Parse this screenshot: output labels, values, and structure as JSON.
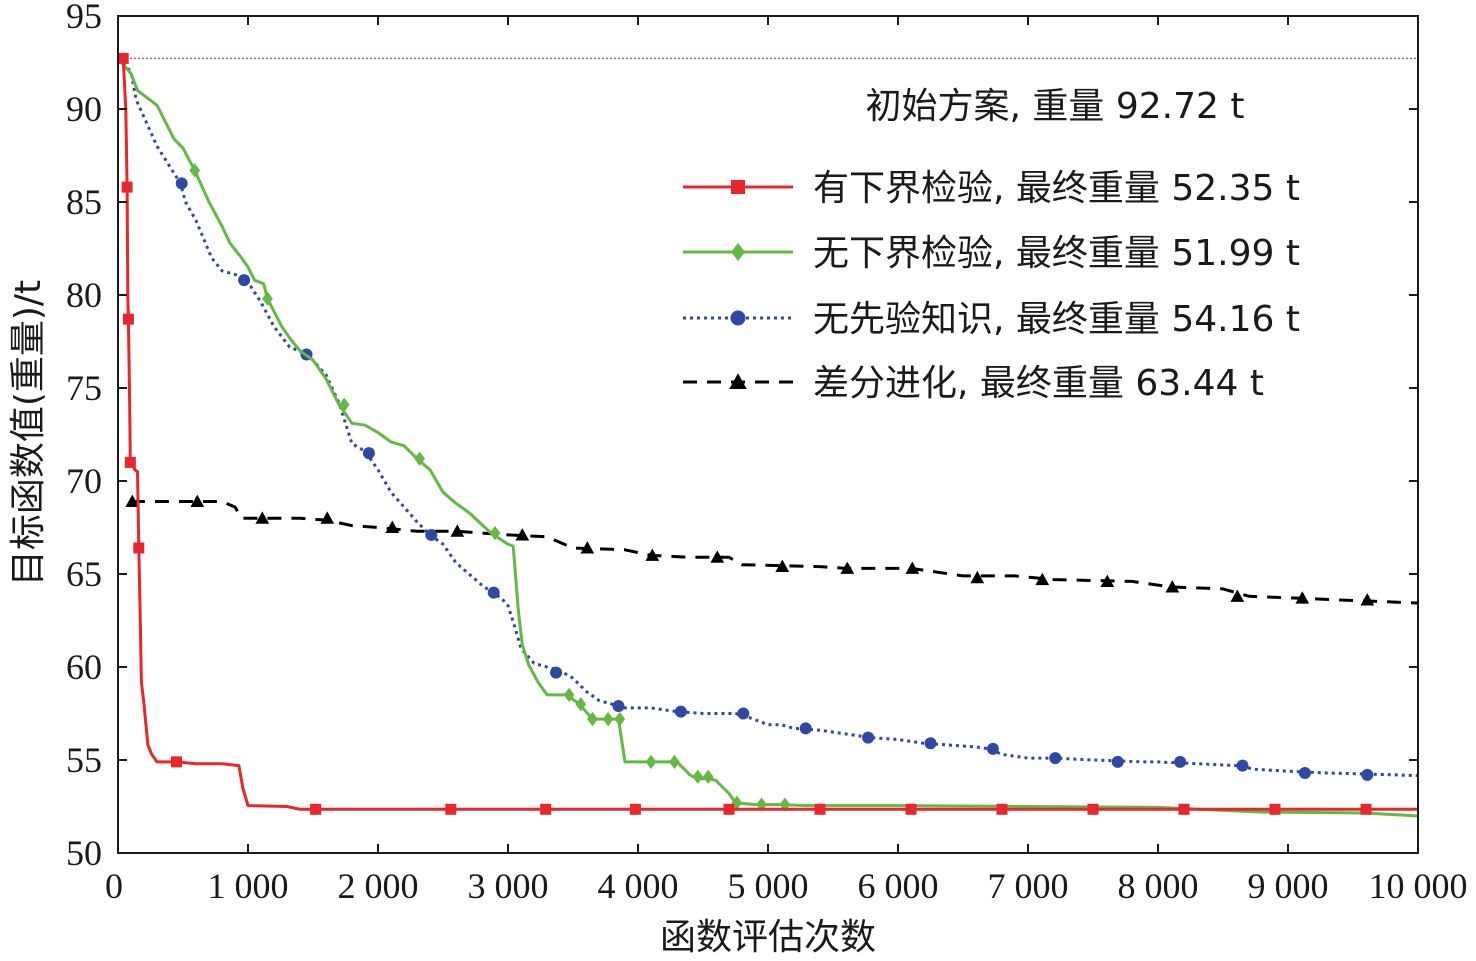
{
  "chart_data": {
    "type": "line",
    "xlabel": "函数评估次数",
    "ylabel": "目标函数值(重量)/t",
    "xlim": [
      0,
      10000
    ],
    "ylim": [
      50,
      95
    ],
    "x_ticks": [
      0,
      1000,
      2000,
      3000,
      4000,
      5000,
      6000,
      7000,
      8000,
      9000,
      10000
    ],
    "x_tick_labels": [
      "0",
      "1 000",
      "2 000",
      "3 000",
      "4 000",
      "5 000",
      "6 000",
      "7 000",
      "8 000",
      "9 000",
      "10 000"
    ],
    "y_ticks": [
      50,
      55,
      60,
      65,
      70,
      75,
      80,
      85,
      90,
      95
    ],
    "y_tick_labels": [
      "50",
      "55",
      "60",
      "65",
      "70",
      "75",
      "80",
      "85",
      "90",
      "95"
    ],
    "grid": false,
    "legend_position": "top-right",
    "reference_line": {
      "y": 92.72,
      "color": "#c0504d",
      "label": "初始方案, 重量 92.72 t"
    },
    "series": [
      {
        "name": "有下界检验, 最终重量 52.35 t",
        "color": "#e8262b",
        "marker": "square",
        "dash": "solid",
        "points": [
          [
            0,
            92.72
          ],
          [
            40,
            92.72
          ],
          [
            60,
            90
          ],
          [
            70,
            85.8
          ],
          [
            75,
            80
          ],
          [
            80,
            78.7
          ],
          [
            90,
            74
          ],
          [
            95,
            71
          ],
          [
            110,
            70.9
          ],
          [
            130,
            70.6
          ],
          [
            150,
            70.5
          ],
          [
            160,
            66.4
          ],
          [
            170,
            63
          ],
          [
            180,
            59.2
          ],
          [
            200,
            58
          ],
          [
            230,
            55.8
          ],
          [
            260,
            55.3
          ],
          [
            300,
            54.9
          ],
          [
            400,
            54.9
          ],
          [
            450,
            54.9
          ],
          [
            600,
            54.8
          ],
          [
            800,
            54.8
          ],
          [
            930,
            54.7
          ],
          [
            960,
            53.5
          ],
          [
            1000,
            52.55
          ],
          [
            1300,
            52.5
          ],
          [
            1400,
            52.35
          ],
          [
            1500,
            52.35
          ],
          [
            2600,
            52.35
          ],
          [
            10000,
            52.35
          ]
        ],
        "marker_points": [
          [
            40,
            92.72
          ],
          [
            70,
            85.8
          ],
          [
            80,
            78.7
          ],
          [
            95,
            71
          ],
          [
            160,
            66.4
          ],
          [
            450,
            54.9
          ],
          [
            1520,
            52.35
          ],
          [
            2560,
            52.35
          ],
          [
            3290,
            52.35
          ],
          [
            3980,
            52.35
          ],
          [
            4700,
            52.35
          ],
          [
            5400,
            52.35
          ],
          [
            6100,
            52.35
          ],
          [
            6800,
            52.35
          ],
          [
            7500,
            52.35
          ],
          [
            8200,
            52.35
          ],
          [
            8900,
            52.35
          ],
          [
            9600,
            52.35
          ]
        ]
      },
      {
        "name": "无下界检验, 最终重量 51.99 t",
        "color": "#63b943",
        "marker": "diamond",
        "dash": "solid",
        "points": [
          [
            0,
            92.72
          ],
          [
            100,
            91.9
          ],
          [
            150,
            91
          ],
          [
            300,
            90.2
          ],
          [
            430,
            88.4
          ],
          [
            500,
            87.9
          ],
          [
            590,
            86.7
          ],
          [
            700,
            85
          ],
          [
            800,
            83.7
          ],
          [
            860,
            82.8
          ],
          [
            950,
            82
          ],
          [
            1000,
            81.5
          ],
          [
            1050,
            80.8
          ],
          [
            1120,
            80.6
          ],
          [
            1150,
            79.8
          ],
          [
            1260,
            78.3
          ],
          [
            1330,
            77.6
          ],
          [
            1400,
            77
          ],
          [
            1500,
            76.5
          ],
          [
            1600,
            75.5
          ],
          [
            1700,
            74.1
          ],
          [
            1800,
            73.1
          ],
          [
            1900,
            73
          ],
          [
            2000,
            72.6
          ],
          [
            2100,
            72.1
          ],
          [
            2200,
            71.9
          ],
          [
            2300,
            71.2
          ],
          [
            2400,
            70.6
          ],
          [
            2500,
            69.4
          ],
          [
            2600,
            68.8
          ],
          [
            2700,
            68.3
          ],
          [
            2870,
            67.2
          ],
          [
            3000,
            66.6
          ],
          [
            3040,
            66.5
          ],
          [
            3080,
            63
          ],
          [
            3110,
            61.2
          ],
          [
            3160,
            60.1
          ],
          [
            3230,
            59.2
          ],
          [
            3300,
            58.5
          ],
          [
            3400,
            58.5
          ],
          [
            3450,
            58.5
          ],
          [
            3550,
            58
          ],
          [
            3650,
            57.2
          ],
          [
            3750,
            57.2
          ],
          [
            3800,
            57.2
          ],
          [
            3850,
            57.2
          ],
          [
            3880,
            55.8
          ],
          [
            3900,
            54.9
          ],
          [
            4000,
            54.9
          ],
          [
            4100,
            54.9
          ],
          [
            4300,
            54.9
          ],
          [
            4400,
            54.2
          ],
          [
            4450,
            54
          ],
          [
            4550,
            54
          ],
          [
            4600,
            53.9
          ],
          [
            4700,
            53.2
          ],
          [
            4750,
            52.7
          ],
          [
            4900,
            52.6
          ],
          [
            5000,
            52.6
          ],
          [
            5100,
            52.6
          ],
          [
            5300,
            52.55
          ],
          [
            6000,
            52.55
          ],
          [
            7000,
            52.5
          ],
          [
            8000,
            52.45
          ],
          [
            8800,
            52.2
          ],
          [
            9600,
            52.15
          ],
          [
            10000,
            51.99
          ]
        ],
        "marker_points": [
          [
            590,
            86.7
          ],
          [
            1150,
            79.8
          ],
          [
            1740,
            74.1
          ],
          [
            2320,
            71.2
          ],
          [
            2900,
            67.2
          ],
          [
            3470,
            58.5
          ],
          [
            3560,
            58
          ],
          [
            3650,
            57.2
          ],
          [
            3770,
            57.2
          ],
          [
            3860,
            57.2
          ],
          [
            4100,
            54.9
          ],
          [
            4280,
            54.9
          ],
          [
            4460,
            54.1
          ],
          [
            4540,
            54.1
          ],
          [
            4760,
            52.7
          ],
          [
            4950,
            52.6
          ],
          [
            5130,
            52.6
          ]
        ]
      },
      {
        "name": "无先验知识, 最终重量 54.16 t",
        "color": "#2e48a4",
        "marker": "circle",
        "dash": "dotted",
        "points": [
          [
            0,
            92.72
          ],
          [
            100,
            92
          ],
          [
            140,
            90.5
          ],
          [
            300,
            88
          ],
          [
            480,
            86
          ],
          [
            520,
            85
          ],
          [
            600,
            84
          ],
          [
            720,
            82
          ],
          [
            800,
            81.3
          ],
          [
            950,
            81
          ],
          [
            1000,
            80.7
          ],
          [
            1100,
            79.6
          ],
          [
            1200,
            78.3
          ],
          [
            1320,
            77.2
          ],
          [
            1460,
            76.8
          ],
          [
            1600,
            75.7
          ],
          [
            1700,
            74.2
          ],
          [
            1800,
            72
          ],
          [
            1900,
            71.6
          ],
          [
            2000,
            70.6
          ],
          [
            2100,
            69.4
          ],
          [
            2200,
            68.6
          ],
          [
            2300,
            67.8
          ],
          [
            2400,
            67.1
          ],
          [
            2500,
            66.6
          ],
          [
            2600,
            65.6
          ],
          [
            2700,
            65
          ],
          [
            2800,
            64.4
          ],
          [
            2880,
            64
          ],
          [
            2950,
            63.7
          ],
          [
            3000,
            63.3
          ],
          [
            3050,
            62.2
          ],
          [
            3100,
            61
          ],
          [
            3200,
            60.2
          ],
          [
            3300,
            60
          ],
          [
            3400,
            59.8
          ],
          [
            3500,
            59.4
          ],
          [
            3600,
            58.7
          ],
          [
            3700,
            58.2
          ],
          [
            3800,
            58
          ],
          [
            3900,
            57.8
          ],
          [
            4000,
            57.8
          ],
          [
            4100,
            57.8
          ],
          [
            4200,
            57.7
          ],
          [
            4300,
            57.6
          ],
          [
            4500,
            57.5
          ],
          [
            4600,
            57.5
          ],
          [
            4750,
            57.5
          ],
          [
            4850,
            57.3
          ],
          [
            5000,
            56.9
          ],
          [
            5100,
            56.9
          ],
          [
            5200,
            56.7
          ],
          [
            5400,
            56.6
          ],
          [
            5600,
            56.4
          ],
          [
            5800,
            56.2
          ],
          [
            6000,
            56.1
          ],
          [
            6100,
            56
          ],
          [
            6200,
            55.9
          ],
          [
            6400,
            55.8
          ],
          [
            6600,
            55.7
          ],
          [
            6700,
            55.6
          ],
          [
            6800,
            55.3
          ],
          [
            7000,
            55.1
          ],
          [
            7200,
            55.1
          ],
          [
            7500,
            55
          ],
          [
            7900,
            54.9
          ],
          [
            8000,
            54.9
          ],
          [
            8300,
            54.8
          ],
          [
            8600,
            54.7
          ],
          [
            8750,
            54.5
          ],
          [
            9000,
            54.4
          ],
          [
            9300,
            54.3
          ],
          [
            9600,
            54.25
          ],
          [
            10000,
            54.16
          ]
        ],
        "marker_points": [
          [
            490,
            86
          ],
          [
            970,
            80.8
          ],
          [
            1450,
            76.8
          ],
          [
            1930,
            71.5
          ],
          [
            2410,
            67.1
          ],
          [
            2890,
            64
          ],
          [
            3370,
            59.7
          ],
          [
            3850,
            57.9
          ],
          [
            4330,
            57.6
          ],
          [
            4810,
            57.5
          ],
          [
            5290,
            56.7
          ],
          [
            5770,
            56.2
          ],
          [
            6250,
            55.9
          ],
          [
            6730,
            55.6
          ],
          [
            7210,
            55.1
          ],
          [
            7690,
            54.9
          ],
          [
            8170,
            54.9
          ],
          [
            8650,
            54.7
          ],
          [
            9130,
            54.3
          ],
          [
            9610,
            54.2
          ]
        ]
      },
      {
        "name": "差分进化, 最终重量 63.44 t",
        "color": "#000000",
        "marker": "triangle",
        "dash": "dashed",
        "points": [
          [
            100,
            68.9
          ],
          [
            400,
            68.9
          ],
          [
            600,
            68.9
          ],
          [
            800,
            68.9
          ],
          [
            900,
            68.6
          ],
          [
            950,
            68
          ],
          [
            1000,
            68
          ],
          [
            1100,
            68
          ],
          [
            1400,
            68
          ],
          [
            1600,
            67.9
          ],
          [
            1800,
            67.6
          ],
          [
            2000,
            67.5
          ],
          [
            2300,
            67.3
          ],
          [
            2600,
            67.3
          ],
          [
            3000,
            67.1
          ],
          [
            3300,
            67
          ],
          [
            3500,
            66.4
          ],
          [
            3900,
            66.3
          ],
          [
            4100,
            66
          ],
          [
            4400,
            65.9
          ],
          [
            4700,
            65.9
          ],
          [
            4800,
            65.5
          ],
          [
            5400,
            65.4
          ],
          [
            5600,
            65.3
          ],
          [
            6100,
            65.3
          ],
          [
            6300,
            65.1
          ],
          [
            6500,
            64.9
          ],
          [
            6900,
            64.9
          ],
          [
            7200,
            64.7
          ],
          [
            7800,
            64.6
          ],
          [
            8100,
            64.3
          ],
          [
            8500,
            64.2
          ],
          [
            8700,
            63.8
          ],
          [
            9100,
            63.7
          ],
          [
            9400,
            63.6
          ],
          [
            10000,
            63.44
          ]
        ],
        "marker_points": [
          [
            110,
            68.9
          ],
          [
            610,
            68.9
          ],
          [
            1110,
            68
          ],
          [
            1610,
            68
          ],
          [
            2110,
            67.5
          ],
          [
            2610,
            67.3
          ],
          [
            3110,
            67.1
          ],
          [
            3610,
            66.4
          ],
          [
            4110,
            66
          ],
          [
            4610,
            65.9
          ],
          [
            5110,
            65.4
          ],
          [
            5610,
            65.3
          ],
          [
            6110,
            65.3
          ],
          [
            6610,
            64.8
          ],
          [
            7110,
            64.7
          ],
          [
            7610,
            64.6
          ],
          [
            8110,
            64.3
          ],
          [
            8610,
            63.8
          ],
          [
            9110,
            63.7
          ],
          [
            9610,
            63.6
          ]
        ]
      }
    ]
  }
}
